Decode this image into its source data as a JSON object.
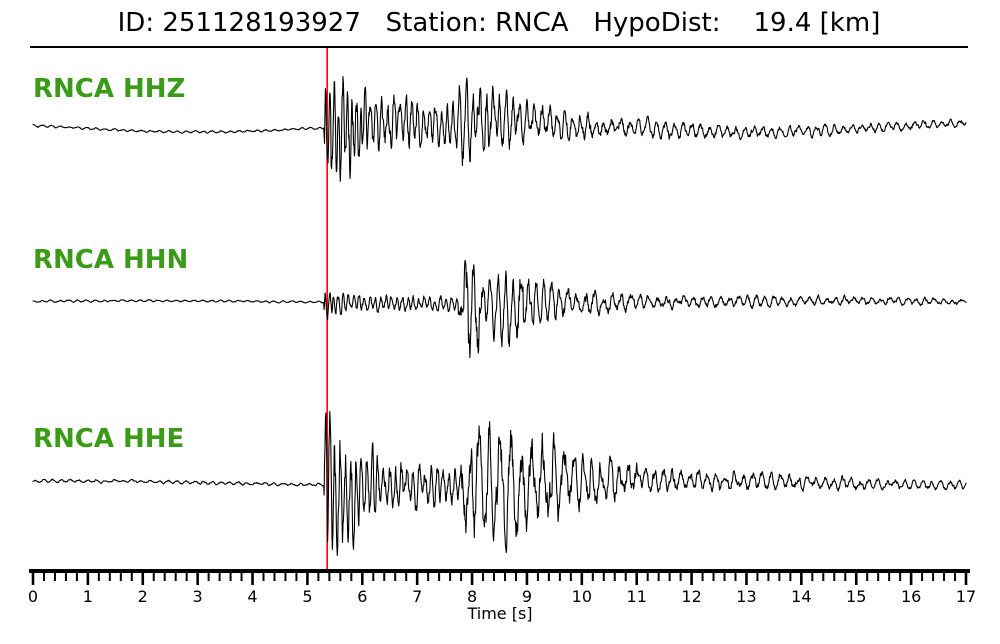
{
  "header": {
    "id_label": "ID:",
    "id": "251128193927",
    "station_label": "Station:",
    "station": "RNCA",
    "hypodist_label": "HypoDist:",
    "hypodist_km": 19.4,
    "hypodist_unit": "[km]"
  },
  "colors": {
    "background": "#ffffff",
    "trace": "#000000",
    "pick_line": "#ff0000",
    "channel_label": "#3a9b18",
    "axis": "#000000"
  },
  "chart_data": {
    "type": "line",
    "title": "ID: 251128193927   Station: RNCA   HypoDist:    19.4 [km]",
    "xlabel": "Time [s]",
    "x_range": [
      0,
      17
    ],
    "x_ticks": [
      0,
      1,
      2,
      3,
      4,
      5,
      6,
      7,
      8,
      9,
      10,
      11,
      12,
      13,
      14,
      15,
      16,
      17
    ],
    "minor_tick_interval": 0.2,
    "grid": false,
    "legend": "none",
    "pick_time_s": 5.36,
    "pick_line_color": "#ff0000",
    "traces": [
      {
        "label": "RNCA HHZ",
        "channel": "HHZ",
        "seed": 101,
        "drift": {
          "amp": 5,
          "period": 10,
          "phase": 2.8
        },
        "envelope": [
          [
            0,
            5.3,
            1.2,
            1.2,
            6
          ],
          [
            5.3,
            5.45,
            55,
            60,
            14
          ],
          [
            5.45,
            6.1,
            60,
            30,
            12
          ],
          [
            6.1,
            7.7,
            30,
            20,
            9
          ],
          [
            7.7,
            8.1,
            36,
            38,
            8
          ],
          [
            8.1,
            8.9,
            34,
            22,
            8
          ],
          [
            8.9,
            10.5,
            20,
            10,
            7
          ],
          [
            10.5,
            13,
            10,
            6,
            6
          ],
          [
            13,
            17,
            6,
            4,
            6
          ]
        ]
      },
      {
        "label": "RNCA HHN",
        "channel": "HHN",
        "seed": 202,
        "drift": {
          "amp": 1.2,
          "period": 12,
          "phase": 0.5
        },
        "envelope": [
          [
            0,
            5.3,
            1.0,
            1.0,
            6
          ],
          [
            5.3,
            5.55,
            13,
            10,
            13
          ],
          [
            5.55,
            7.75,
            9,
            7,
            10
          ],
          [
            7.75,
            8.05,
            25,
            80,
            6
          ],
          [
            8.05,
            8.45,
            55,
            30,
            7
          ],
          [
            8.45,
            8.95,
            30,
            45,
            7
          ],
          [
            8.95,
            9.6,
            30,
            16,
            7
          ],
          [
            9.6,
            11,
            14,
            8,
            6
          ],
          [
            11,
            17,
            7,
            3,
            6
          ]
        ]
      },
      {
        "label": "RNCA HHE",
        "channel": "HHE",
        "seed": 303,
        "drift": {
          "amp": 2,
          "period": 11,
          "phase": 1.2
        },
        "envelope": [
          [
            0,
            5.3,
            1.5,
            1.5,
            6
          ],
          [
            5.3,
            5.5,
            60,
            75,
            12
          ],
          [
            5.5,
            6.3,
            55,
            30,
            10
          ],
          [
            6.3,
            7.8,
            25,
            18,
            9
          ],
          [
            7.8,
            8.1,
            40,
            70,
            6
          ],
          [
            8.1,
            9.7,
            62,
            35,
            5
          ],
          [
            9.7,
            11.2,
            28,
            14,
            6
          ],
          [
            11.2,
            14,
            12,
            7,
            6
          ],
          [
            14,
            17,
            7,
            4,
            6
          ]
        ]
      }
    ]
  }
}
